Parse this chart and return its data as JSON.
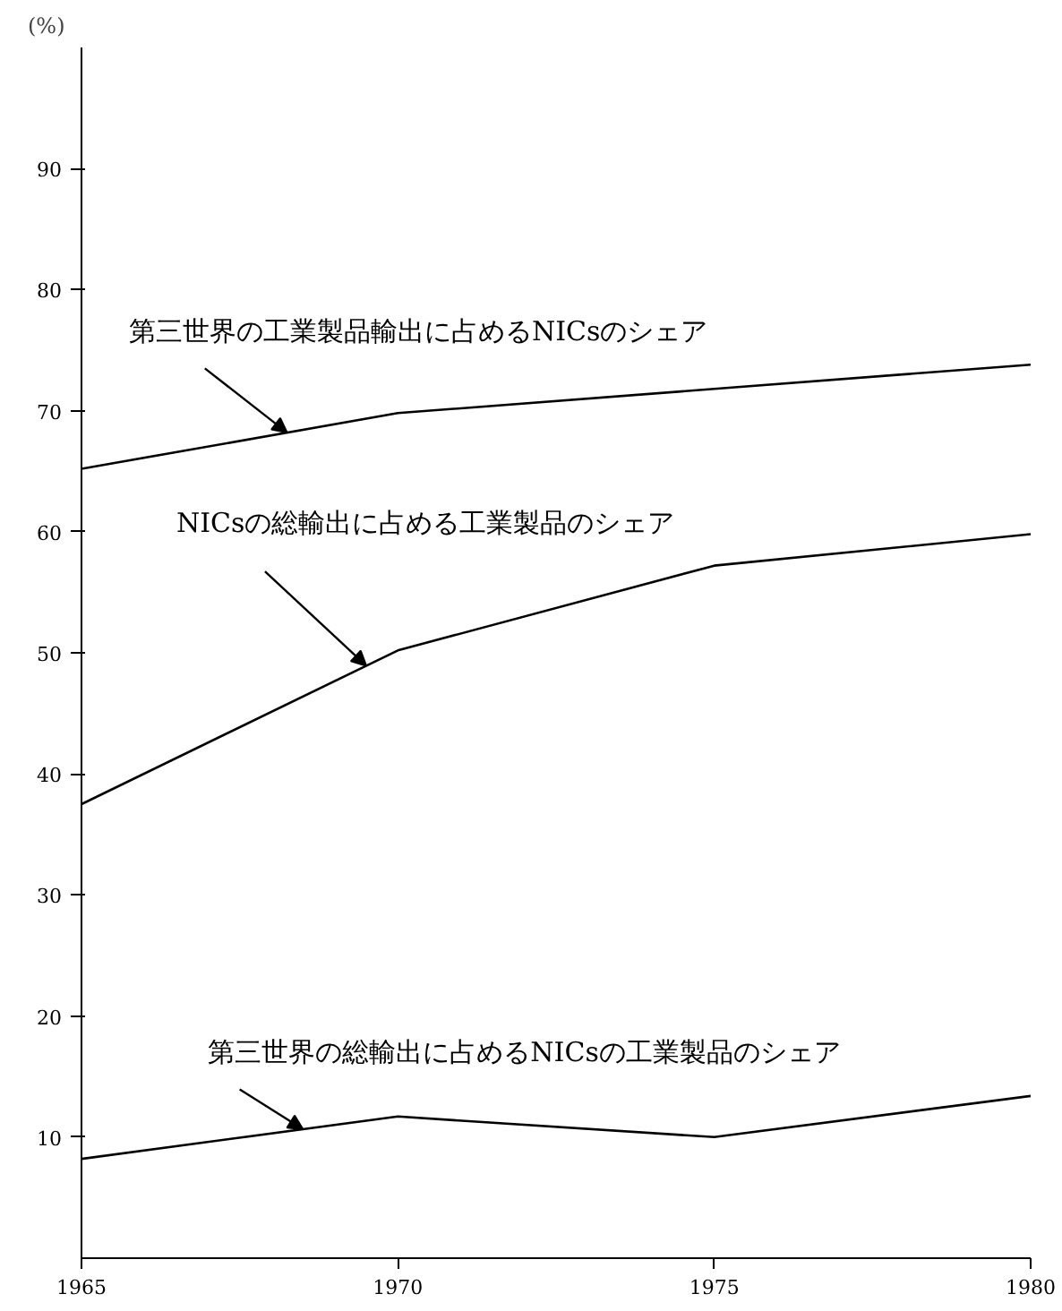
{
  "chart_data": {
    "type": "line",
    "ylabel": "(%)",
    "x": [
      1965,
      1970,
      1975,
      1980
    ],
    "series": [
      {
        "name": "第三世界の工業製品輸出に占めるNICsのシェア",
        "color": "#000000",
        "values": [
          65.2,
          69.8,
          71.8,
          73.8
        ]
      },
      {
        "name": "NICsの総輸出に占める工業製品のシェア",
        "color": "#000000",
        "values": [
          37.5,
          50.2,
          57.2,
          59.8
        ]
      },
      {
        "name": "第三世界の総輸出に占めるNICsの工業製品のシェア",
        "color": "#000000",
        "values": [
          8.2,
          11.7,
          10.0,
          13.4
        ]
      }
    ],
    "xlim": [
      1965,
      1980
    ],
    "xticks": [
      1965,
      1970,
      1975,
      1980
    ],
    "ylim": [
      0,
      100
    ],
    "yticks": [
      10,
      20,
      30,
      40,
      50,
      60,
      70,
      80,
      90
    ],
    "grid": false,
    "marker": "none",
    "line_style": "solid"
  }
}
